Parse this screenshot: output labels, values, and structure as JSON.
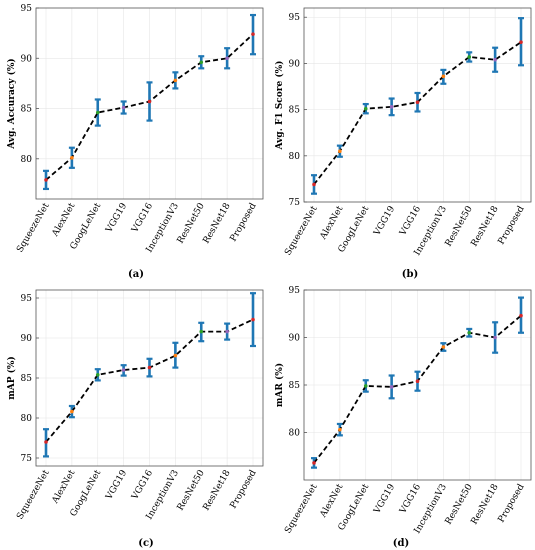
{
  "colors": {
    "error_bar": "#1f77b4",
    "mean_line": "#000000",
    "markers": [
      "#d62728",
      "#ff7f0e",
      "#2ca02c",
      "#9467bd"
    ]
  },
  "chart_data": [
    {
      "type": "line",
      "panel_label": "(a)",
      "ylabel": "Avg. Accuracy (%)",
      "ylim": [
        76,
        95
      ],
      "yticks": [
        80,
        85,
        90,
        95
      ],
      "categories": [
        "SqueezeNet",
        "AlexNet",
        "GoogLeNet",
        "VGG19",
        "VGG16",
        "InceptionV3",
        "ResNet50",
        "ResNet18",
        "Proposed"
      ],
      "series": [
        {
          "values": [
            77.9,
            80.1,
            84.6,
            85.1,
            85.7,
            87.8,
            89.6,
            90.0,
            92.4
          ],
          "lower": [
            77.0,
            79.1,
            83.3,
            84.5,
            83.8,
            87.0,
            89.0,
            89.0,
            90.4
          ],
          "upper": [
            78.8,
            81.1,
            85.9,
            85.7,
            87.6,
            88.6,
            90.2,
            91.0,
            94.3
          ]
        }
      ],
      "grid": true
    },
    {
      "type": "line",
      "panel_label": "(b)",
      "ylabel": "Avg. F1 Score (%)",
      "ylim": [
        75,
        96
      ],
      "yticks": [
        75,
        80,
        85,
        90,
        95
      ],
      "categories": [
        "SqueezeNet",
        "AlexNet",
        "GoogLeNet",
        "VGG19",
        "VGG16",
        "InceptionV3",
        "ResNet50",
        "ResNet18",
        "Proposed"
      ],
      "series": [
        {
          "values": [
            76.9,
            80.5,
            85.1,
            85.3,
            85.8,
            88.6,
            90.7,
            90.4,
            92.3
          ],
          "lower": [
            75.9,
            79.9,
            84.6,
            84.4,
            84.8,
            87.8,
            90.2,
            89.1,
            89.8
          ],
          "upper": [
            77.9,
            81.1,
            85.6,
            86.2,
            86.8,
            89.3,
            91.2,
            91.7,
            94.9
          ]
        }
      ],
      "grid": true
    },
    {
      "type": "line",
      "panel_label": "(c)",
      "ylabel": "mAP (%)",
      "ylim": [
        74,
        96
      ],
      "yticks": [
        75,
        80,
        85,
        90,
        95
      ],
      "categories": [
        "SqueezeNet",
        "AlexNet",
        "GoogLeNet",
        "VGG19",
        "VGG16",
        "InceptionV3",
        "ResNet50",
        "ResNet18",
        "Proposed"
      ],
      "series": [
        {
          "values": [
            77.0,
            80.8,
            85.4,
            86.0,
            86.3,
            87.8,
            90.8,
            90.8,
            92.3
          ],
          "lower": [
            75.2,
            80.1,
            84.7,
            85.3,
            85.2,
            86.3,
            89.6,
            89.8,
            89.0
          ],
          "upper": [
            78.6,
            81.5,
            86.1,
            86.6,
            87.4,
            89.4,
            91.9,
            91.8,
            95.6
          ]
        }
      ],
      "grid": true
    },
    {
      "type": "line",
      "panel_label": "(d)",
      "ylabel": "mAR (%)",
      "ylim": [
        75,
        95
      ],
      "yticks": [
        80,
        85,
        90,
        95
      ],
      "categories": [
        "SqueezeNet",
        "AlexNet",
        "GoogLeNet",
        "VGG19",
        "VGG16",
        "InceptionV3",
        "ResNet50",
        "ResNet18",
        "Proposed"
      ],
      "series": [
        {
          "values": [
            76.8,
            80.3,
            84.9,
            84.8,
            85.4,
            89.0,
            90.5,
            90.0,
            92.3
          ],
          "lower": [
            76.3,
            79.7,
            84.3,
            83.6,
            84.4,
            88.6,
            90.1,
            88.4,
            90.5
          ],
          "upper": [
            77.3,
            80.9,
            85.5,
            86.0,
            86.4,
            89.4,
            90.9,
            91.6,
            94.2
          ]
        }
      ],
      "grid": true
    }
  ]
}
